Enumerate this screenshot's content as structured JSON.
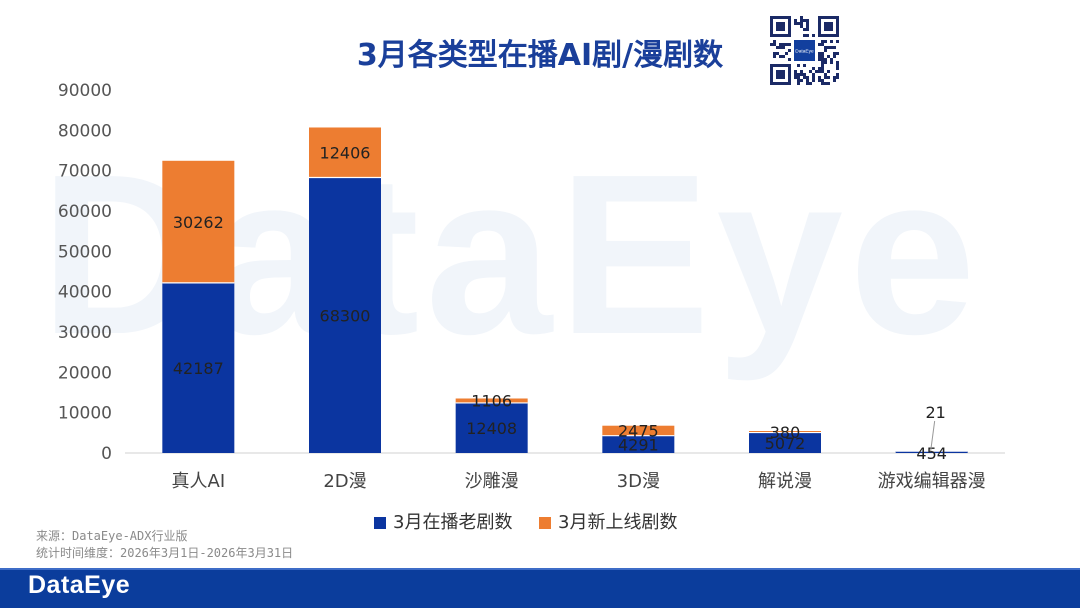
{
  "watermark": "DataEye",
  "brand": {
    "logo_text": "DataEye",
    "qr_label": "DataEye",
    "primary_color": "#0b3d9c"
  },
  "footnotes": {
    "source": "来源：DataEye-ADX行业版",
    "period": "统计时间维度：2026年3月1日-2026年3月31日"
  },
  "chart_data": {
    "type": "bar",
    "stacked": true,
    "title": "3月各类型在播AI剧/漫剧数",
    "categories": [
      "真人AI",
      "2D漫",
      "沙雕漫",
      "3D漫",
      "解说漫",
      "游戏编辑器漫"
    ],
    "series": [
      {
        "name": "3月在播老剧数",
        "color": "#0b35a0",
        "values": [
          42187,
          68300,
          12408,
          4291,
          5072,
          454
        ]
      },
      {
        "name": "3月新上线剧数",
        "color": "#ed7d31",
        "values": [
          30262,
          12406,
          1106,
          2475,
          380,
          21
        ]
      }
    ],
    "ylim": [
      0,
      90000
    ],
    "yticks": [
      0,
      10000,
      20000,
      30000,
      40000,
      50000,
      60000,
      70000,
      80000,
      90000
    ],
    "xlabel": "",
    "ylabel": "",
    "grid": false,
    "legend": "bottom"
  }
}
